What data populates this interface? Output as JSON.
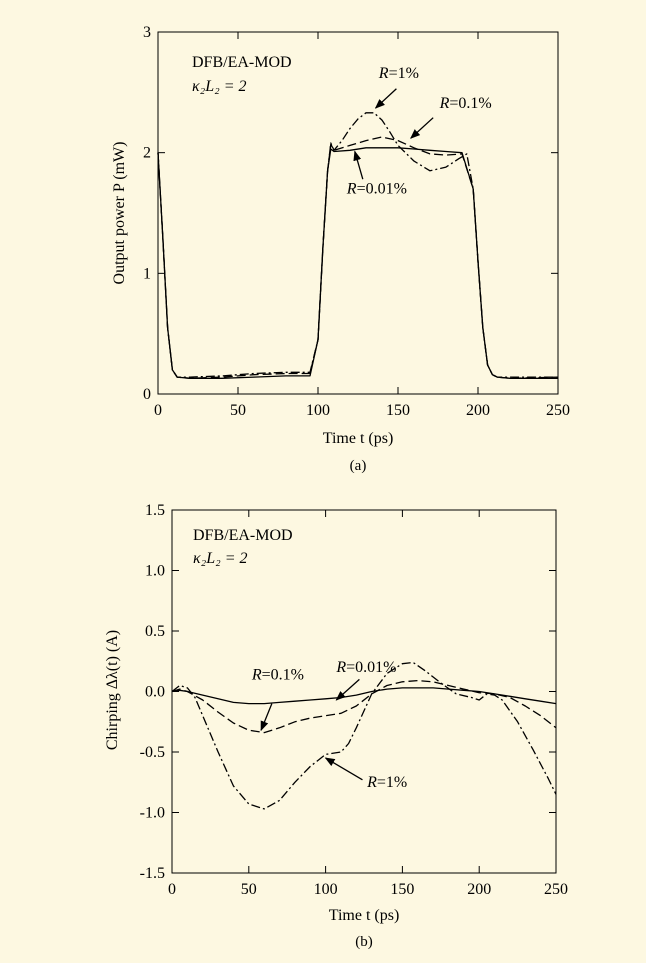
{
  "background": "#fdf8e1",
  "chart_data": [
    {
      "type": "line",
      "panel_label": "(a)",
      "annotation_lines": [
        "DFB/EA-MOD",
        "κ₂L₂ = 2"
      ],
      "xlabel": "Time t (ps)",
      "ylabel": "Output power P (mW)",
      "xlim": [
        0,
        250
      ],
      "ylim": [
        0,
        3
      ],
      "xticks": [
        0,
        50,
        100,
        150,
        200,
        250
      ],
      "yticks": [
        0,
        1,
        2,
        3
      ],
      "grid": false,
      "series": [
        {
          "name": "R=1%",
          "style": "dashdot",
          "x": [
            0,
            3,
            6,
            9,
            12,
            20,
            40,
            60,
            80,
            95,
            100,
            103,
            106,
            108,
            110,
            115,
            120,
            125,
            130,
            135,
            140,
            145,
            150,
            160,
            170,
            180,
            188,
            193,
            197,
            200,
            203,
            206,
            209,
            212,
            220,
            235,
            250
          ],
          "y": [
            2.0,
            1.3,
            0.55,
            0.2,
            0.14,
            0.14,
            0.15,
            0.17,
            0.18,
            0.18,
            0.45,
            1.2,
            1.85,
            2.08,
            2.02,
            2.1,
            2.2,
            2.28,
            2.33,
            2.33,
            2.27,
            2.17,
            2.06,
            1.93,
            1.85,
            1.88,
            1.95,
            1.99,
            1.7,
            1.1,
            0.55,
            0.24,
            0.16,
            0.14,
            0.14,
            0.14,
            0.14
          ]
        },
        {
          "name": "R=0.1%",
          "style": "dashed",
          "x": [
            0,
            3,
            6,
            9,
            12,
            20,
            40,
            60,
            80,
            95,
            100,
            103,
            106,
            108,
            110,
            120,
            130,
            140,
            150,
            160,
            170,
            180,
            190,
            197,
            200,
            203,
            206,
            209,
            212,
            220,
            250
          ],
          "y": [
            2.0,
            1.3,
            0.55,
            0.2,
            0.14,
            0.13,
            0.14,
            0.16,
            0.17,
            0.17,
            0.45,
            1.2,
            1.85,
            2.07,
            2.02,
            2.06,
            2.1,
            2.13,
            2.1,
            2.04,
            1.99,
            1.98,
            1.99,
            1.7,
            1.1,
            0.55,
            0.24,
            0.16,
            0.14,
            0.13,
            0.14
          ]
        },
        {
          "name": "R=0.01%",
          "style": "solid",
          "x": [
            0,
            3,
            6,
            9,
            12,
            20,
            40,
            60,
            80,
            95,
            100,
            103,
            106,
            108,
            110,
            120,
            130,
            140,
            150,
            160,
            170,
            180,
            190,
            197,
            200,
            203,
            206,
            209,
            212,
            220,
            250
          ],
          "y": [
            2.0,
            1.3,
            0.55,
            0.2,
            0.14,
            0.13,
            0.13,
            0.14,
            0.15,
            0.15,
            0.45,
            1.2,
            1.85,
            2.03,
            2.01,
            2.02,
            2.04,
            2.04,
            2.04,
            2.03,
            2.02,
            2.01,
            2.0,
            1.7,
            1.1,
            0.55,
            0.24,
            0.16,
            0.14,
            0.13,
            0.13
          ]
        }
      ],
      "labels": [
        {
          "text": "R=1%",
          "x": 138,
          "y": 2.62
        },
        {
          "text": "R=0.1%",
          "x": 176,
          "y": 2.37
        },
        {
          "text": "R=0.01%",
          "x": 118,
          "y": 1.66
        }
      ],
      "arrows": [
        {
          "from": [
            149,
            2.53
          ],
          "to": [
            136,
            2.37
          ]
        },
        {
          "from": [
            172,
            2.29
          ],
          "to": [
            158,
            2.12
          ]
        },
        {
          "from": [
            128,
            1.78
          ],
          "to": [
            123,
            2.01
          ]
        }
      ]
    },
    {
      "type": "line",
      "panel_label": "(b)",
      "annotation_lines": [
        "DFB/EA-MOD",
        "κ₂L₂ = 2"
      ],
      "xlabel": "Time t (ps)",
      "ylabel": "Chirping Δλ(t) (A)",
      "xlim": [
        0,
        250
      ],
      "ylim": [
        -1.5,
        1.5
      ],
      "xticks": [
        0,
        50,
        100,
        150,
        200,
        250
      ],
      "yticks": [
        -1.5,
        -1.0,
        -0.5,
        0.0,
        0.5,
        1.0,
        1.5
      ],
      "grid": false,
      "series": [
        {
          "name": "R=1%",
          "style": "dashdot",
          "x": [
            0,
            5,
            10,
            15,
            20,
            30,
            40,
            50,
            60,
            70,
            80,
            90,
            100,
            110,
            115,
            120,
            130,
            140,
            150,
            157,
            165,
            175,
            185,
            195,
            200,
            205,
            210,
            215,
            225,
            235,
            245,
            250
          ],
          "y": [
            0.0,
            0.05,
            0.03,
            -0.05,
            -0.2,
            -0.5,
            -0.78,
            -0.93,
            -0.97,
            -0.9,
            -0.75,
            -0.62,
            -0.52,
            -0.5,
            -0.43,
            -0.3,
            -0.02,
            0.15,
            0.23,
            0.24,
            0.17,
            0.07,
            -0.02,
            -0.05,
            -0.07,
            -0.02,
            -0.03,
            -0.07,
            -0.25,
            -0.48,
            -0.72,
            -0.85
          ]
        },
        {
          "name": "R=0.1%",
          "style": "dashed",
          "x": [
            0,
            5,
            10,
            20,
            30,
            40,
            50,
            60,
            70,
            80,
            90,
            100,
            110,
            120,
            130,
            140,
            150,
            160,
            170,
            180,
            190,
            200,
            210,
            220,
            230,
            240,
            250
          ],
          "y": [
            0.0,
            0.02,
            0.0,
            -0.07,
            -0.17,
            -0.26,
            -0.32,
            -0.34,
            -0.3,
            -0.25,
            -0.22,
            -0.2,
            -0.18,
            -0.12,
            -0.02,
            0.05,
            0.08,
            0.09,
            0.08,
            0.05,
            0.02,
            -0.01,
            -0.02,
            -0.05,
            -0.12,
            -0.2,
            -0.3
          ]
        },
        {
          "name": "R=0.01%",
          "style": "solid",
          "x": [
            0,
            5,
            10,
            20,
            30,
            40,
            50,
            60,
            70,
            80,
            90,
            100,
            110,
            120,
            130,
            140,
            150,
            160,
            170,
            180,
            190,
            200,
            210,
            220,
            230,
            240,
            250
          ],
          "y": [
            0.0,
            0.01,
            0.0,
            -0.03,
            -0.06,
            -0.09,
            -0.1,
            -0.1,
            -0.09,
            -0.08,
            -0.07,
            -0.06,
            -0.05,
            -0.03,
            0.0,
            0.02,
            0.03,
            0.03,
            0.03,
            0.02,
            0.01,
            0.0,
            -0.02,
            -0.04,
            -0.06,
            -0.08,
            -0.1
          ]
        }
      ],
      "labels": [
        {
          "text": "R=0.1%",
          "x": 52,
          "y": 0.1
        },
        {
          "text": "R=0.01%",
          "x": 107,
          "y": 0.16
        },
        {
          "text": "R=1%",
          "x": 127,
          "y": -0.79
        }
      ],
      "arrows": [
        {
          "from": [
            65,
            -0.1
          ],
          "to": [
            58,
            -0.32
          ]
        },
        {
          "from": [
            122,
            0.1
          ],
          "to": [
            107,
            -0.07
          ]
        },
        {
          "from": [
            124,
            -0.73
          ],
          "to": [
            100,
            -0.55
          ]
        }
      ]
    }
  ]
}
